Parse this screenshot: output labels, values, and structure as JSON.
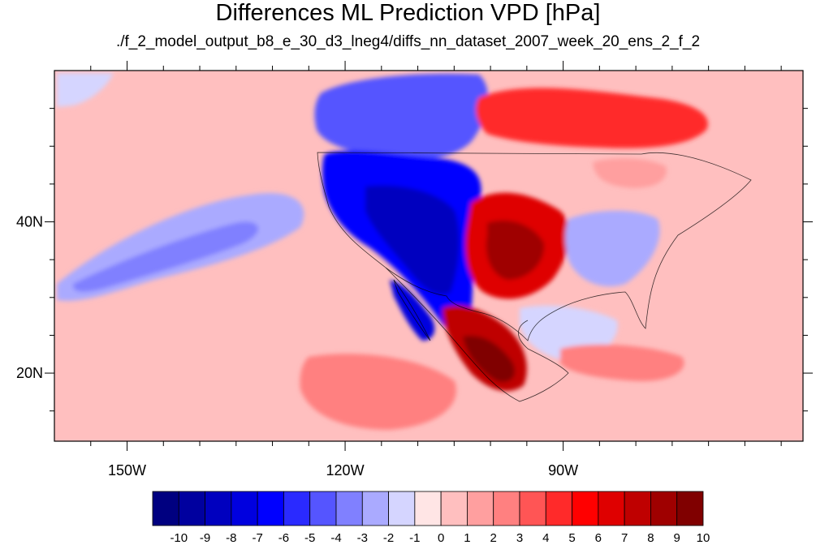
{
  "chart_data": {
    "type": "heatmap",
    "title": "Differences ML Prediction VPD [hPa]",
    "subtitle": "./f_2_model_output_b8_e_30_d3_lneg4/diffs_nn_dataset_2007_week_20_ens_2_f_2",
    "map": {
      "lon_range": [
        -160,
        -57
      ],
      "lat_range": [
        11,
        60
      ],
      "x_ticks": [
        {
          "value": -150,
          "label": "150W"
        },
        {
          "value": -120,
          "label": "120W"
        },
        {
          "value": -90,
          "label": "90W"
        }
      ],
      "y_ticks": [
        {
          "value": 40,
          "label": "40N"
        },
        {
          "value": 20,
          "label": "20N"
        }
      ]
    },
    "colorbar": {
      "levels": [
        "-10",
        "-9",
        "-8",
        "-7",
        "-6",
        "-5",
        "-4",
        "-3",
        "-2",
        "-1",
        "0",
        "1",
        "2",
        "3",
        "4",
        "5",
        "6",
        "7",
        "8",
        "9",
        "10"
      ],
      "colors": [
        "#000080",
        "#00009f",
        "#0000bf",
        "#0000df",
        "#0000ff",
        "#2a2aff",
        "#5555ff",
        "#8080ff",
        "#aaaaff",
        "#d5d5ff",
        "#ffe5e5",
        "#ffbfbf",
        "#ff9f9f",
        "#ff8080",
        "#ff5555",
        "#ff2a2a",
        "#ff0000",
        "#df0000",
        "#bf0000",
        "#9f0000",
        "#800000"
      ]
    },
    "regions": [
      {
        "name": "background",
        "value": 0.3
      },
      {
        "name": "pacific-band",
        "value": -2.5
      },
      {
        "name": "pacific-band-core",
        "value": -3.2
      },
      {
        "name": "north-pacific-patch",
        "value": -1.5
      },
      {
        "name": "western-us",
        "value": -7
      },
      {
        "name": "western-us-core",
        "value": -9
      },
      {
        "name": "canada-north",
        "value": -5
      },
      {
        "name": "baja-peninsula",
        "value": -8
      },
      {
        "name": "southern-plains",
        "value": 6
      },
      {
        "name": "southern-plains-core",
        "value": 8
      },
      {
        "name": "mexico-plateau",
        "value": 7
      },
      {
        "name": "mexico-plateau-core",
        "value": 9.5
      },
      {
        "name": "canada-east",
        "value": 4
      },
      {
        "name": "southeast-us",
        "value": -3
      },
      {
        "name": "gulf-of-mexico",
        "value": -1.5
      },
      {
        "name": "eastern-pacific-south",
        "value": 2
      },
      {
        "name": "caribbean",
        "value": 2.5
      },
      {
        "name": "great-lakes",
        "value": 1.5
      }
    ]
  }
}
